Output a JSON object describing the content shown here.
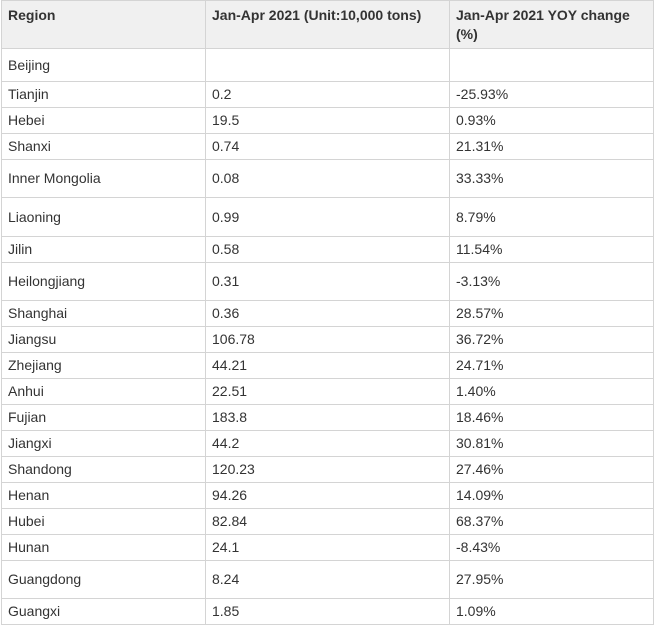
{
  "table": {
    "header": [
      "Region",
      "Jan-Apr 2021 (Unit:10,000 tons)",
      "Jan-Apr 2021 YOY change (%)"
    ],
    "rows": [
      [
        "Beijing",
        null,
        null
      ],
      [
        "Tianjin",
        "0.2",
        "-25.93%"
      ],
      [
        "Hebei",
        "19.5",
        "0.93%"
      ],
      [
        "Shanxi",
        "0.74",
        "21.31%"
      ],
      [
        "Inner Mongolia",
        "0.08",
        "33.33%"
      ],
      [
        "Liaoning",
        "0.99",
        "8.79%"
      ],
      [
        "Jilin",
        "0.58",
        "11.54%"
      ],
      [
        "Heilongjiang",
        "0.31",
        "-3.13%"
      ],
      [
        "Shanghai",
        "0.36",
        "28.57%"
      ],
      [
        "Jiangsu",
        "106.78",
        "36.72%"
      ],
      [
        "Zhejiang",
        "44.21",
        "24.71%"
      ],
      [
        "Anhui",
        "22.51",
        "1.40%"
      ],
      [
        "Fujian",
        "183.8",
        "18.46%"
      ],
      [
        "Jiangxi",
        "44.2",
        "30.81%"
      ],
      [
        "Shandong",
        "120.23",
        "27.46%"
      ],
      [
        "Henan",
        "94.26",
        "14.09%"
      ],
      [
        "Hubei",
        "82.84",
        "68.37%"
      ],
      [
        "Hunan",
        "24.1",
        "-8.43%"
      ],
      [
        "Guangdong",
        "8.24",
        "27.95%"
      ],
      [
        "Guangxi",
        "1.85",
        "1.09%"
      ]
    ]
  }
}
